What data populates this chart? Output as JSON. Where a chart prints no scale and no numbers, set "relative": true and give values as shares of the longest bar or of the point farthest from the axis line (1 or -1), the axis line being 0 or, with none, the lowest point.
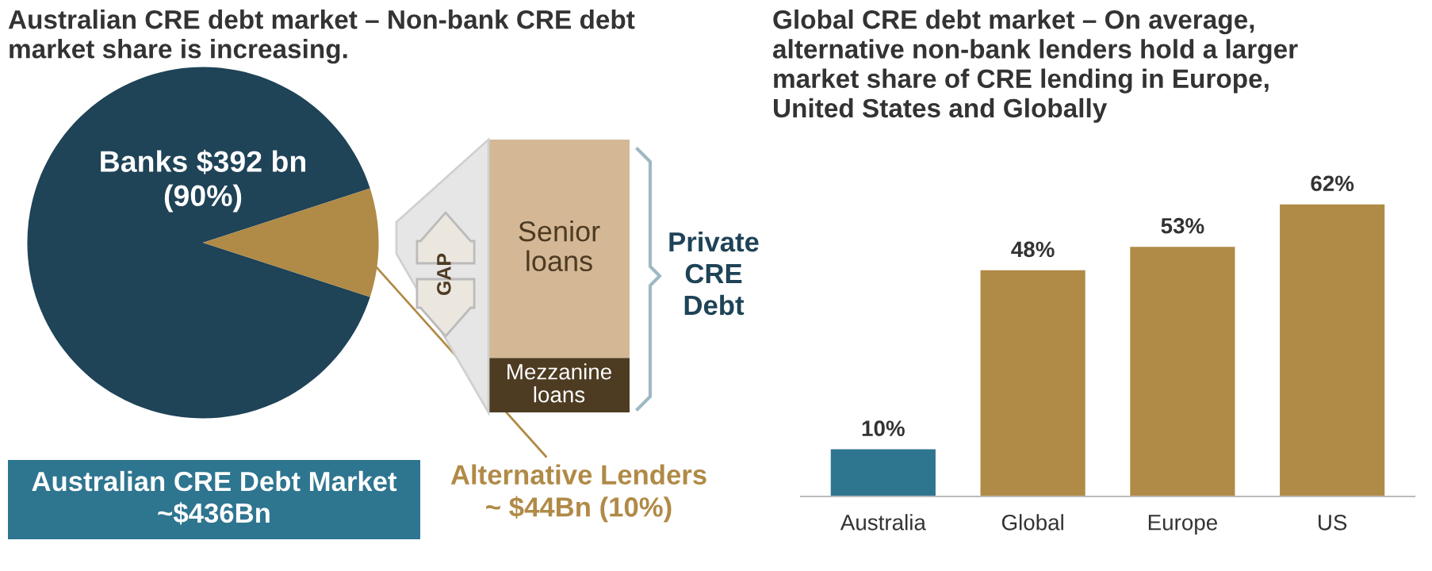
{
  "chart_data": [
    {
      "type": "pie",
      "title": "Australian CRE debt market – Non-bank CRE debt\nmarket share is increasing.",
      "categories": [
        "Banks $392 bn\n(90%)",
        "Alternative Lenders\n~ $44Bn (10%)"
      ],
      "values": [
        90,
        10
      ],
      "colors": [
        "#1f4357",
        "#b08a47"
      ],
      "annotations": [
        "Australian CRE Debt Market\n~$436Bn"
      ]
    },
    {
      "type": "bar",
      "stacked": true,
      "relative": true,
      "categories": [
        null
      ],
      "series": [
        {
          "name": "Mezzanine\nloans",
          "color": "#4d3b22",
          "values": [
            0.2
          ]
        },
        {
          "name": "Senior\nloans",
          "color": "#d4b896",
          "values": [
            0.8
          ]
        }
      ],
      "annotations": [
        "GAP",
        "Private\nCRE\nDebt"
      ]
    },
    {
      "type": "bar",
      "title": "Global CRE debt market – On average,\nalternative non-bank lenders hold a larger\nmarket share of CRE lending in Europe,\nUnited States and Globally",
      "categories": [
        "Australia",
        "Global",
        "Europe",
        "US"
      ],
      "values": [
        10,
        48,
        53,
        62
      ],
      "colors": [
        "#2e7590",
        "#b08a47",
        "#b08a47",
        "#b08a47"
      ],
      "value_labels": [
        "10%",
        "48%",
        "53%",
        "62%"
      ],
      "relative": false
    }
  ]
}
